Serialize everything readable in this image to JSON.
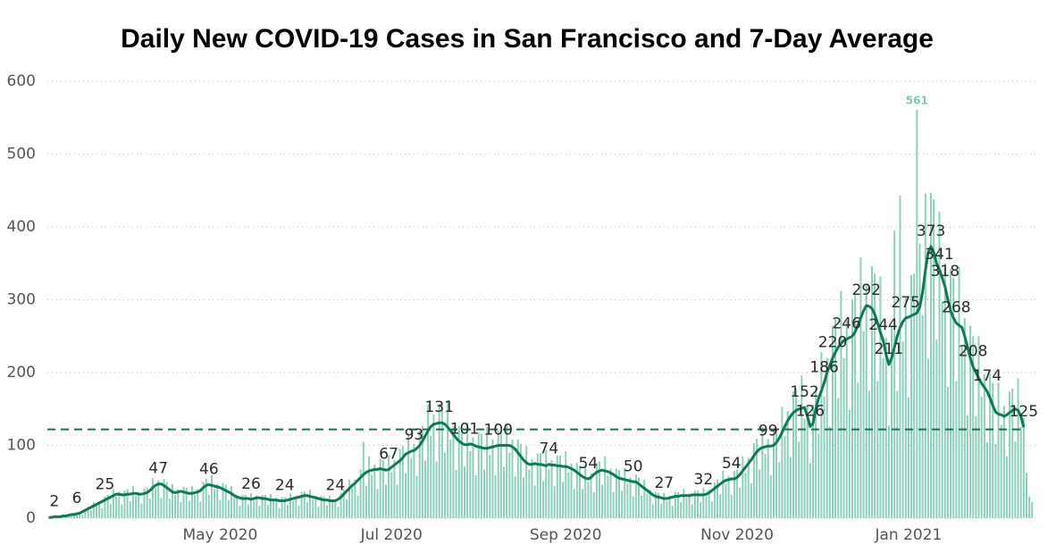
{
  "chart_data": {
    "type": "bar",
    "title": "Daily New COVID-19 Cases in San Francisco and 7-Day Average",
    "xlim": [
      -0.5,
      351.5
    ],
    "xticks": [
      {
        "value": 61,
        "label": "May 2020"
      },
      {
        "value": 122,
        "label": "Jul 2020"
      },
      {
        "value": 184,
        "label": "Sep 2020"
      },
      {
        "value": 245,
        "label": "Nov 2020"
      },
      {
        "value": 306,
        "label": "Jan 2021"
      }
    ],
    "ylim": [
      0,
      600
    ],
    "yticks": [
      0,
      100,
      200,
      300,
      400,
      500,
      600
    ],
    "grid": true,
    "label_max": true,
    "reference_line": {
      "value": 122,
      "color": "#1d6e52"
    },
    "series": [
      {
        "type": "bar",
        "color": "#8fcfbd",
        "values": [
          1,
          1,
          3,
          2,
          2,
          2,
          4,
          5,
          4,
          7,
          5,
          8,
          5,
          13,
          16,
          11,
          22,
          17,
          23,
          14,
          30,
          32,
          20,
          40,
          30,
          36,
          19,
          38,
          40,
          23,
          44,
          31,
          36,
          20,
          41,
          42,
          27,
          55,
          41,
          52,
          28,
          54,
          50,
          27,
          47,
          32,
          40,
          22,
          43,
          42,
          24,
          44,
          32,
          40,
          23,
          50,
          54,
          32,
          59,
          40,
          47,
          25,
          48,
          46,
          25,
          44,
          28,
          32,
          17,
          32,
          32,
          19,
          34,
          24,
          31,
          17,
          32,
          32,
          18,
          33,
          23,
          28,
          14,
          29,
          29,
          18,
          34,
          24,
          31,
          17,
          36,
          37,
          22,
          39,
          26,
          31,
          16,
          31,
          30,
          18,
          31,
          22,
          26,
          16,
          35,
          40,
          26,
          53,
          41,
          53,
          31,
          67,
          105,
          44,
          85,
          59,
          74,
          40,
          82,
          80,
          46,
          87,
          63,
          80,
          46,
          95,
          100,
          62,
          117,
          83,
          102,
          58,
          120,
          127,
          79,
          156,
          113,
          142,
          78,
          157,
          157,
          90,
          162,
          108,
          126,
          66,
          127,
          124,
          71,
          131,
          92,
          111,
          59,
          118,
          116,
          67,
          125,
          87,
          108,
          59,
          120,
          120,
          70,
          130,
          90,
          108,
          57,
          108,
          102,
          56,
          99,
          67,
          81,
          45,
          89,
          89,
          51,
          94,
          67,
          80,
          44,
          86,
          86,
          50,
          92,
          63,
          75,
          40,
          76,
          72,
          40,
          72,
          49,
          62,
          36,
          76,
          78,
          46,
          85,
          58,
          68,
          36,
          68,
          66,
          38,
          69,
          47,
          56,
          30,
          60,
          56,
          31,
          53,
          34,
          39,
          19,
          36,
          35,
          20,
          35,
          24,
          31,
          17,
          36,
          36,
          22,
          40,
          28,
          34,
          19,
          38,
          38,
          22,
          42,
          30,
          39,
          23,
          49,
          53,
          33,
          65,
          47,
          58,
          32,
          65,
          67,
          42,
          85,
          63,
          83,
          48,
          103,
          109,
          67,
          126,
          88,
          109,
          59,
          120,
          125,
          77,
          153,
          113,
          147,
          84,
          174,
          178,
          105,
          196,
          137,
          154,
          76,
          156,
          180,
          116,
          228,
          167,
          220,
          126,
          264,
          274,
          165,
          312,
          220,
          271,
          149,
          300,
          307,
          186,
          358,
          257,
          321,
          175,
          346,
          336,
          188,
          332,
          220,
          248,
          127,
          264,
          395,
          175,
          443,
          243,
          303,
          166,
          334,
          336,
          561,
          377,
          279,
          446,
          219,
          447,
          438,
          245,
          421,
          297,
          350,
          180,
          342,
          330,
          188,
          345,
          236,
          275,
          141,
          264,
          250,
          140,
          250,
          167,
          198,
          104,
          198,
          186,
          102,
          186,
          128,
          154,
          85,
          174,
          178,
          105,
          192,
          126,
          138,
          62,
          30,
          22
        ]
      },
      {
        "type": "line",
        "color": "#0c7a58",
        "values": [
          1,
          1,
          2,
          2,
          2,
          3,
          3,
          4,
          5,
          5,
          6,
          7,
          9,
          11,
          13,
          15,
          17,
          19,
          21,
          23,
          25,
          27,
          29,
          31,
          33,
          33,
          32,
          32,
          33,
          33,
          34,
          34,
          33,
          33,
          34,
          35,
          38,
          42,
          45,
          47,
          47,
          45,
          42,
          39,
          36,
          35,
          36,
          37,
          36,
          35,
          34,
          34,
          35,
          36,
          38,
          42,
          45,
          46,
          45,
          44,
          43,
          42,
          40,
          38,
          36,
          34,
          31,
          29,
          28,
          27,
          27,
          27,
          26,
          27,
          28,
          28,
          27,
          27,
          26,
          25,
          25,
          25,
          24,
          24,
          24,
          25,
          26,
          27,
          28,
          29,
          30,
          31,
          31,
          30,
          29,
          28,
          27,
          26,
          25,
          25,
          24,
          24,
          24,
          26,
          29,
          33,
          37,
          41,
          45,
          48,
          52,
          56,
          60,
          63,
          65,
          66,
          67,
          67,
          68,
          67,
          66,
          67,
          70,
          73,
          76,
          79,
          83,
          88,
          90,
          92,
          93,
          96,
          100,
          106,
          113,
          120,
          126,
          129,
          130,
          131,
          131,
          129,
          125,
          120,
          115,
          110,
          106,
          103,
          101,
          101,
          102,
          101,
          99,
          98,
          97,
          96,
          96,
          97,
          98,
          99,
          100,
          100,
          100,
          100,
          100,
          98,
          95,
          90,
          85,
          80,
          76,
          74,
          74,
          75,
          74,
          74,
          73,
          72,
          74,
          73,
          73,
          72,
          72,
          71,
          71,
          70,
          68,
          66,
          63,
          60,
          57,
          55,
          54,
          56,
          60,
          63,
          65,
          66,
          65,
          64,
          62,
          60,
          57,
          55,
          54,
          53,
          52,
          51,
          50,
          50,
          47,
          44,
          41,
          38,
          35,
          32,
          30,
          29,
          28,
          27,
          27,
          28,
          29,
          30,
          30,
          31,
          31,
          31,
          31,
          32,
          32,
          32,
          32,
          32,
          33,
          35,
          38,
          41,
          44,
          47,
          50,
          52,
          53,
          54,
          54,
          56,
          60,
          65,
          70,
          75,
          80,
          86,
          91,
          95,
          97,
          98,
          99,
          99,
          100,
          104,
          110,
          118,
          126,
          134,
          140,
          145,
          148,
          150,
          151,
          152,
          140,
          126,
          130,
          150,
          165,
          175,
          186,
          200,
          210,
          220,
          228,
          235,
          240,
          244,
          246,
          248,
          250,
          256,
          265,
          275,
          285,
          292,
          291,
          288,
          280,
          268,
          255,
          244,
          225,
          211,
          220,
          235,
          250,
          262,
          270,
          275,
          276,
          278,
          280,
          282,
          290,
          310,
          340,
          365,
          373,
          365,
          350,
          341,
          330,
          318,
          300,
          285,
          275,
          268,
          265,
          262,
          250,
          235,
          220,
          208,
          200,
          192,
          185,
          180,
          174,
          165,
          155,
          146,
          143,
          142,
          140,
          142,
          145,
          148,
          150,
          148,
          140,
          125,
          null,
          null,
          null
        ],
        "value_labels": [
          null,
          null,
          "2",
          null,
          null,
          null,
          null,
          null,
          null,
          null,
          "6",
          null,
          null,
          null,
          null,
          null,
          null,
          null,
          null,
          null,
          "25",
          null,
          null,
          null,
          null,
          null,
          null,
          null,
          null,
          null,
          null,
          null,
          null,
          null,
          null,
          null,
          null,
          null,
          null,
          "47",
          null,
          null,
          null,
          null,
          null,
          null,
          null,
          null,
          null,
          null,
          null,
          null,
          null,
          null,
          null,
          null,
          null,
          "46",
          null,
          null,
          null,
          null,
          null,
          null,
          null,
          null,
          null,
          null,
          null,
          null,
          null,
          null,
          "26",
          null,
          null,
          null,
          null,
          null,
          null,
          null,
          null,
          null,
          null,
          null,
          "24",
          null,
          null,
          null,
          null,
          null,
          null,
          null,
          null,
          null,
          null,
          null,
          null,
          null,
          null,
          null,
          null,
          null,
          "24",
          null,
          null,
          null,
          null,
          null,
          null,
          null,
          null,
          null,
          null,
          null,
          null,
          null,
          null,
          null,
          null,
          null,
          null,
          "67",
          null,
          null,
          null,
          null,
          null,
          null,
          null,
          null,
          "93",
          null,
          null,
          null,
          null,
          null,
          null,
          null,
          null,
          "131",
          null,
          null,
          null,
          null,
          null,
          null,
          null,
          null,
          "101",
          null,
          null,
          null,
          null,
          null,
          null,
          null,
          null,
          null,
          null,
          null,
          "100",
          null,
          null,
          null,
          null,
          null,
          null,
          null,
          null,
          null,
          null,
          null,
          null,
          null,
          null,
          null,
          null,
          null,
          "74",
          null,
          null,
          null,
          null,
          null,
          null,
          null,
          null,
          null,
          null,
          null,
          null,
          null,
          "54",
          null,
          null,
          null,
          null,
          null,
          null,
          null,
          null,
          null,
          null,
          null,
          null,
          null,
          null,
          null,
          "50",
          null,
          null,
          null,
          null,
          null,
          null,
          null,
          null,
          null,
          null,
          "27",
          null,
          null,
          null,
          null,
          null,
          null,
          null,
          null,
          null,
          null,
          null,
          null,
          null,
          "32",
          null,
          null,
          null,
          null,
          null,
          null,
          null,
          null,
          null,
          "54",
          null,
          null,
          null,
          null,
          null,
          null,
          null,
          null,
          null,
          null,
          null,
          null,
          "99",
          null,
          null,
          null,
          null,
          null,
          null,
          null,
          null,
          null,
          null,
          null,
          null,
          "152",
          null,
          "126",
          null,
          null,
          null,
          null,
          "186",
          null,
          null,
          "220",
          null,
          null,
          null,
          null,
          "246",
          null,
          null,
          null,
          null,
          null,
          null,
          "292",
          null,
          null,
          null,
          null,
          null,
          "244",
          null,
          "211",
          null,
          null,
          null,
          null,
          null,
          "275",
          null,
          null,
          null,
          null,
          null,
          null,
          null,
          null,
          "373",
          null,
          null,
          "341",
          null,
          "318",
          null,
          null,
          null,
          "268",
          null,
          null,
          null,
          null,
          null,
          "208",
          null,
          null,
          null,
          null,
          "174",
          null,
          null,
          null,
          null,
          null,
          null,
          null,
          null,
          null,
          null,
          null,
          null,
          "125",
          null,
          null,
          null
        ]
      }
    ]
  }
}
